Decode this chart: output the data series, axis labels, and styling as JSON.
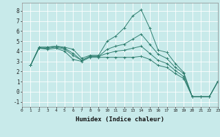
{
  "xlabel": "Humidex (Indice chaleur)",
  "background_color": "#c8eaea",
  "grid_color": "#ffffff",
  "line_color": "#2e7d6e",
  "xlim": [
    0,
    23
  ],
  "ylim": [
    -1.5,
    8.8
  ],
  "xticks": [
    0,
    1,
    2,
    3,
    4,
    5,
    6,
    7,
    8,
    9,
    10,
    11,
    12,
    13,
    14,
    15,
    16,
    17,
    18,
    19,
    20,
    21,
    22,
    23
  ],
  "yticks": [
    -1,
    0,
    1,
    2,
    3,
    4,
    5,
    6,
    7,
    8
  ],
  "lines": [
    {
      "x": [
        1,
        2,
        3,
        4,
        5,
        6,
        7,
        8,
        9,
        10,
        11,
        12,
        13,
        14,
        15,
        16,
        17,
        18,
        19,
        20,
        21,
        22,
        23
      ],
      "y": [
        2.6,
        4.4,
        4.4,
        4.5,
        4.4,
        4.2,
        3.3,
        3.6,
        3.6,
        5.0,
        5.5,
        6.3,
        7.5,
        8.1,
        6.3,
        4.1,
        3.9,
        2.8,
        1.9,
        -0.5,
        -0.5,
        -0.5,
        1.0
      ]
    },
    {
      "x": [
        1,
        2,
        3,
        4,
        5,
        6,
        7,
        8,
        9,
        10,
        11,
        12,
        13,
        14,
        15,
        16,
        17,
        18,
        19,
        20,
        21,
        22,
        23
      ],
      "y": [
        2.6,
        4.4,
        4.4,
        4.5,
        4.3,
        3.8,
        3.1,
        3.5,
        3.5,
        4.2,
        4.5,
        4.7,
        5.2,
        5.7,
        4.7,
        3.7,
        3.3,
        2.4,
        1.8,
        -0.5,
        -0.5,
        -0.5,
        1.0
      ]
    },
    {
      "x": [
        1,
        2,
        3,
        4,
        5,
        6,
        7,
        8,
        9,
        10,
        11,
        12,
        13,
        14,
        15,
        16,
        17,
        18,
        19,
        20,
        21,
        22,
        23
      ],
      "y": [
        2.6,
        4.3,
        4.3,
        4.4,
        4.2,
        3.6,
        3.1,
        3.5,
        3.5,
        3.8,
        4.0,
        4.1,
        4.3,
        4.5,
        3.8,
        3.1,
        2.8,
        2.1,
        1.5,
        -0.5,
        -0.5,
        -0.5,
        1.0
      ]
    },
    {
      "x": [
        1,
        2,
        3,
        4,
        5,
        6,
        7,
        8,
        9,
        10,
        11,
        12,
        13,
        14,
        15,
        16,
        17,
        18,
        19,
        20,
        21,
        22,
        23
      ],
      "y": [
        2.6,
        4.3,
        4.2,
        4.3,
        4.0,
        3.2,
        3.0,
        3.4,
        3.4,
        3.4,
        3.4,
        3.4,
        3.4,
        3.5,
        3.2,
        2.6,
        2.4,
        1.8,
        1.3,
        -0.5,
        -0.5,
        -0.5,
        1.0
      ]
    }
  ]
}
